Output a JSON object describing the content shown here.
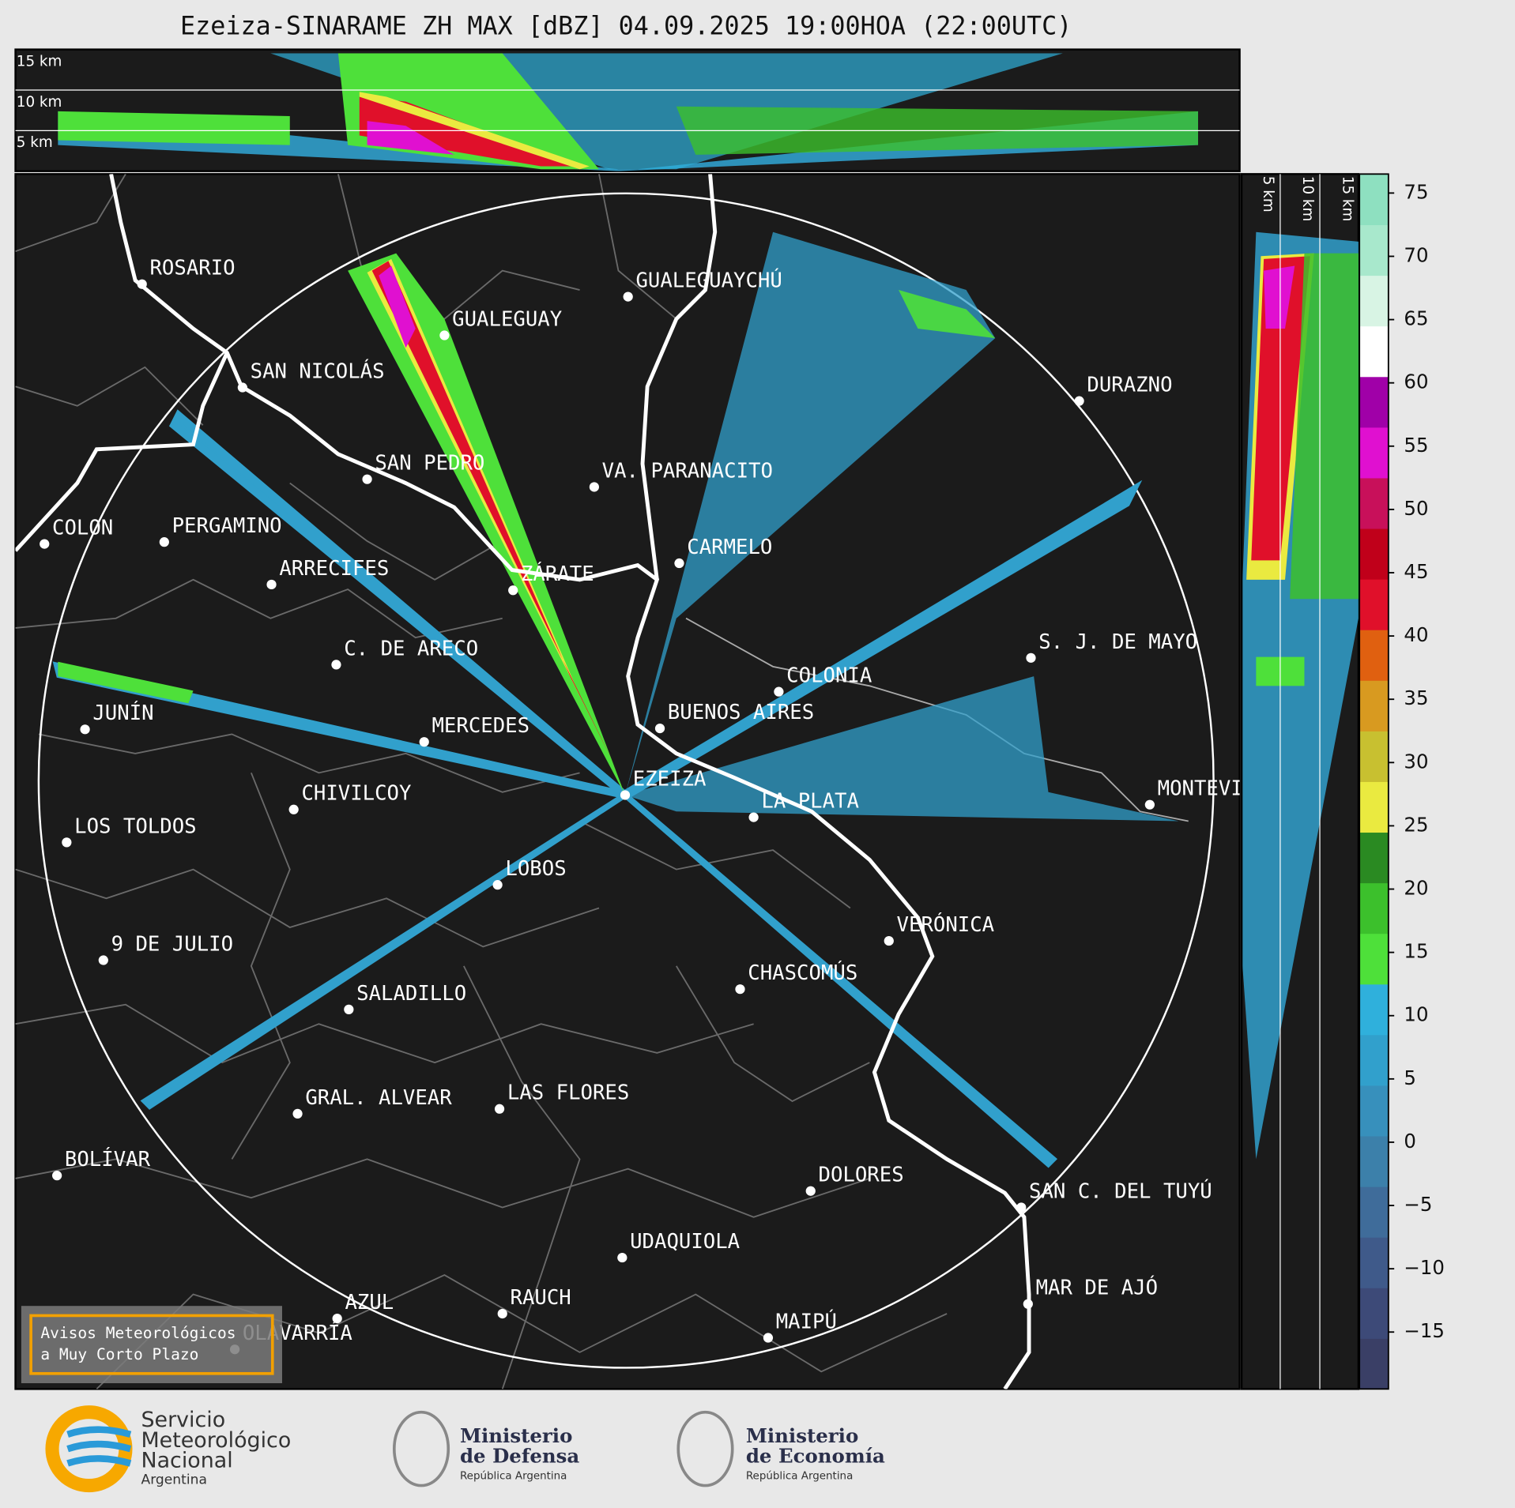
{
  "title": "Ezeiza-SINARAME ZH MAX [dBZ] 04.09.2025 19:00HOA (22:00UTC)",
  "top_panel": {
    "height_labels": [
      "15 km",
      "10 km",
      "5 km"
    ]
  },
  "side_panel": {
    "height_labels": [
      "5 km",
      "10 km",
      "15 km"
    ]
  },
  "cities": [
    "ROSARIO",
    "GUALEGUAYCHÚ",
    "GUALEGUAY",
    "SAN NICOLÁS",
    "DURAZNO",
    "SAN PEDRO",
    "VA. PARANACITO",
    "COLON",
    "PERGAMINO",
    "CARMELO",
    "ARRECIFES",
    "ZÁRATE",
    "C. DE ARECO",
    "S. J. DE MAYO",
    "COLONIA",
    "JUNÍN",
    "BUENOS AIRES",
    "MERCEDES",
    "EZEIZA",
    "MONTEVIDEO",
    "CHIVILCOY",
    "LA PLATA",
    "LOS TOLDOS",
    "LOBOS",
    "VERÓNICA",
    "9 DE JULIO",
    "CHASCOMÚS",
    "SALADILLO",
    "GRAL. ALVEAR",
    "LAS FLORES",
    "BOLÍVAR",
    "DOLORES",
    "SAN C. DEL TUYÚ",
    "UDAQUIOLA",
    "MAR DE AJÓ",
    "AZUL",
    "RAUCH",
    "MAIPÚ",
    "OLAVARRÍA"
  ],
  "colorbar": {
    "range": [
      -19.5,
      76.5
    ],
    "ticks": [
      {
        "value": -15,
        "label": "−15"
      },
      {
        "value": -10,
        "label": "−10"
      },
      {
        "value": -5,
        "label": "−5"
      },
      0,
      5,
      10,
      15,
      20,
      25,
      30,
      35,
      40,
      45,
      50,
      55,
      60,
      65,
      70,
      75
    ],
    "colors": [
      "#3a3f66",
      "#3d4a78",
      "#3f5a8a",
      "#3f6c9a",
      "#3c80aa",
      "#3790bc",
      "#31a0cc",
      "#2fb0dc",
      "#4ee03a",
      "#3cc02c",
      "#2a8a22",
      "#eaea40",
      "#c8c030",
      "#d89a20",
      "#e06010",
      "#e0102a",
      "#c0001a",
      "#c8105a",
      "#e010d0",
      "#a000a8",
      "#ffffff",
      "#d8f4e4",
      "#a8e8cc",
      "#8ee0c0"
    ]
  },
  "notice": [
    "Avisos Meteorológicos",
    "a Muy Corto Plazo"
  ],
  "logos": {
    "smn": [
      "Servicio",
      "Meteorológico",
      "Nacional",
      "Argentina"
    ],
    "defensa": [
      "Ministerio",
      "de Defensa",
      "República Argentina"
    ],
    "economia": [
      "Ministerio",
      "de Economía",
      "República Argentina"
    ]
  }
}
